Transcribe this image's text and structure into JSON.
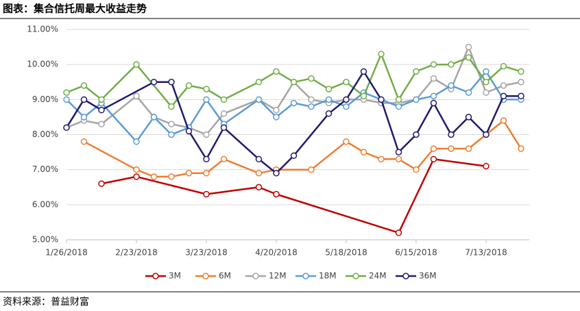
{
  "chart_data": {
    "type": "line",
    "title": "图表：集合信托周最大收益走势",
    "source": "资料来源：普益财富",
    "categories": [
      "1/26/2018",
      null,
      null,
      null,
      "2/23/2018",
      null,
      null,
      null,
      "3/23/2018",
      null,
      null,
      null,
      "4/20/2018",
      null,
      null,
      null,
      "5/18/2018",
      null,
      null,
      null,
      "6/15/2018",
      null,
      null,
      null,
      "7/13/2018",
      null,
      null
    ],
    "ylim": [
      5,
      11
    ],
    "yticks": [
      {
        "value": 5,
        "label": "5.00%"
      },
      {
        "value": 6,
        "label": "6.00%"
      },
      {
        "value": 7,
        "label": "7.00%"
      },
      {
        "value": 8,
        "label": "8.00%"
      },
      {
        "value": 9,
        "label": "9.00%"
      },
      {
        "value": 10,
        "label": "10.00%"
      },
      {
        "value": 11,
        "label": "11.00%"
      }
    ],
    "grid": true,
    "connect_gaps": true,
    "legend": "bottom",
    "series": [
      {
        "name": "3M",
        "color": "#c00000",
        "values": [
          null,
          null,
          6.6,
          null,
          6.8,
          null,
          null,
          null,
          6.3,
          null,
          null,
          6.5,
          6.3,
          null,
          null,
          null,
          null,
          null,
          null,
          5.2,
          null,
          7.3,
          null,
          null,
          7.1,
          null,
          null
        ]
      },
      {
        "name": "6M",
        "color": "#ed7d31",
        "values": [
          null,
          7.8,
          null,
          null,
          7.0,
          6.8,
          6.8,
          6.9,
          6.9,
          7.3,
          null,
          6.9,
          7.0,
          null,
          7.0,
          null,
          7.8,
          7.5,
          7.3,
          7.3,
          7.0,
          7.6,
          7.6,
          7.6,
          8.0,
          8.4,
          7.6
        ]
      },
      {
        "name": "12M",
        "color": "#a5a5a5",
        "values": [
          8.2,
          8.4,
          8.3,
          null,
          9.1,
          8.5,
          8.3,
          8.2,
          8.0,
          8.6,
          null,
          9.0,
          8.7,
          9.5,
          9.0,
          8.9,
          9.0,
          9.0,
          8.9,
          8.9,
          9.0,
          9.6,
          9.3,
          10.5,
          9.2,
          9.4,
          9.5
        ]
      },
      {
        "name": "18M",
        "color": "#5b9bd5",
        "values": [
          9.0,
          8.5,
          8.9,
          null,
          7.8,
          8.5,
          8.0,
          8.2,
          9.0,
          8.3,
          null,
          9.0,
          8.5,
          8.9,
          8.8,
          9.0,
          8.8,
          9.2,
          9.0,
          8.8,
          9.0,
          9.1,
          9.4,
          9.2,
          9.8,
          9.0,
          9.0
        ]
      },
      {
        "name": "24M",
        "color": "#70ad47",
        "values": [
          9.2,
          9.4,
          9.0,
          null,
          10.0,
          null,
          8.8,
          9.4,
          9.3,
          9.0,
          null,
          9.5,
          9.8,
          9.5,
          9.6,
          9.3,
          9.5,
          9.1,
          10.3,
          9.0,
          9.8,
          10.0,
          10.0,
          10.2,
          9.5,
          9.95,
          9.8
        ]
      },
      {
        "name": "36M",
        "color": "#1f1a6e",
        "values": [
          8.2,
          9.0,
          8.7,
          null,
          null,
          9.5,
          9.5,
          8.1,
          7.3,
          8.2,
          null,
          7.3,
          6.9,
          7.4,
          null,
          8.6,
          9.0,
          9.8,
          9.0,
          7.5,
          8.0,
          8.9,
          8.0,
          8.5,
          8.0,
          9.1,
          9.1
        ]
      }
    ]
  }
}
